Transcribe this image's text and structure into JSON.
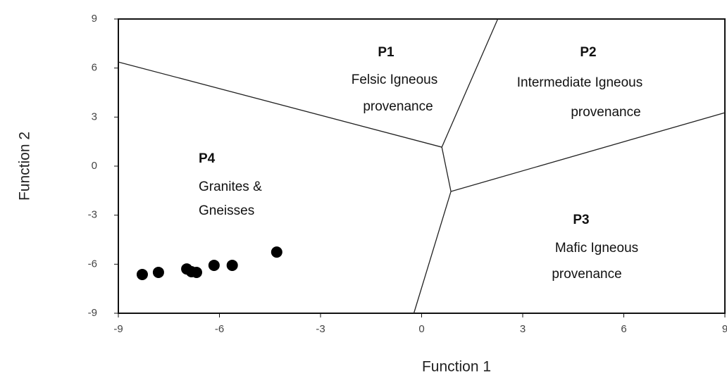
{
  "chart_data": {
    "type": "scatter",
    "xlabel": "Function 1",
    "ylabel": "Function 2",
    "xlim": [
      -9,
      9
    ],
    "ylim": [
      -9,
      9
    ],
    "xticks": [
      -9,
      -6,
      -3,
      0,
      3,
      6,
      9
    ],
    "yticks": [
      9,
      6,
      3,
      0,
      -3,
      -6,
      -9
    ],
    "series": [
      {
        "color": "#000000",
        "x": [
          -8.29,
          -7.81,
          -6.97,
          -6.83,
          -6.68,
          -6.16,
          -5.62,
          -4.3
        ],
        "values": [
          -6.63,
          -6.5,
          -6.29,
          -6.46,
          -6.5,
          -6.07,
          -6.07,
          -5.26
        ]
      }
    ],
    "boundaries": [
      {
        "x": [
          -9,
          0.6,
          2.26
        ],
        "y": [
          6.37,
          1.16,
          9
        ]
      },
      {
        "x": [
          0.6,
          0.87
        ],
        "y": [
          1.16,
          -1.55
        ]
      },
      {
        "x": [
          9,
          0.87,
          -0.23
        ],
        "y": [
          3.27,
          -1.55,
          -9
        ]
      }
    ],
    "annotations": [
      {
        "title": "P1",
        "lines": [
          "Felsic Igneous",
          "provenance"
        ]
      },
      {
        "title": "P2",
        "lines": [
          "Intermediate Igneous",
          "provenance"
        ]
      },
      {
        "title": "P3",
        "lines": [
          "Mafic Igneous",
          "provenance"
        ]
      },
      {
        "title": "P4",
        "lines": [
          "Granites &",
          "Gneisses"
        ]
      }
    ]
  }
}
